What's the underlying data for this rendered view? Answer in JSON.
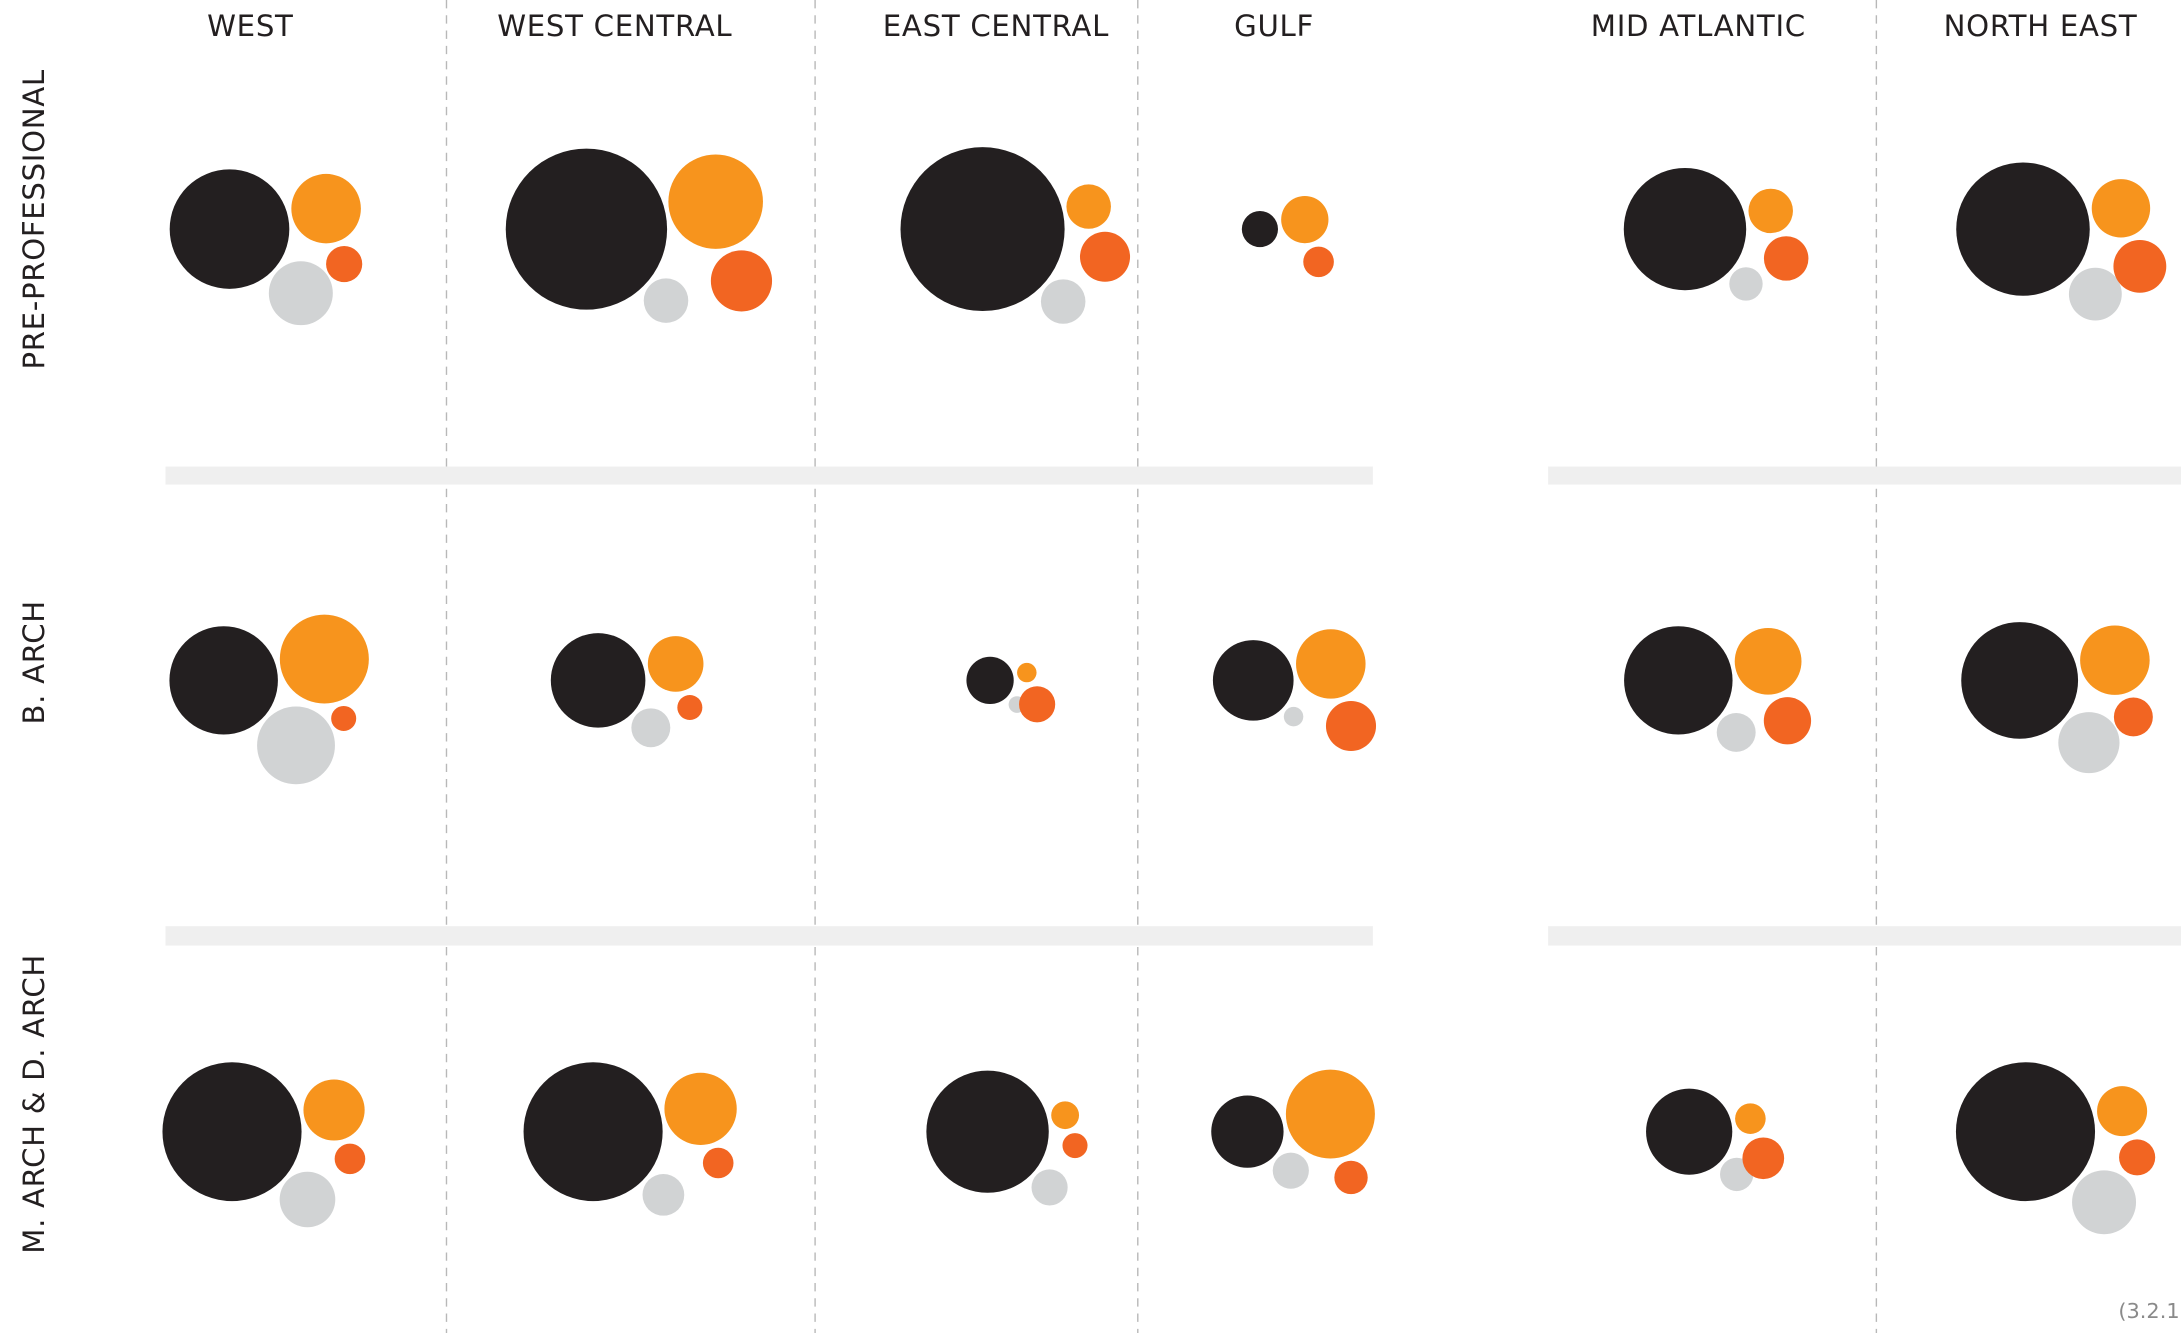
{
  "chart_data": {
    "type": "bubble-grid",
    "columns": [
      "WEST",
      "WEST CENTRAL",
      "EAST CENTRAL",
      "GULF",
      "MID ATLANTIC",
      "NORTH EAST"
    ],
    "colors": [
      "#231f20",
      "#f7941d",
      "#d1d3d4",
      "#f26522"
    ],
    "rows": [
      {
        "label": "PRE-PROFESSIONAL",
        "values": [
          [
            43,
            25,
            23,
            13
          ],
          [
            58,
            34,
            16,
            22
          ],
          [
            59,
            16,
            16,
            18
          ],
          [
            13,
            17,
            0,
            11
          ],
          [
            44,
            16,
            12,
            16
          ],
          [
            48,
            21,
            19,
            19
          ]
        ]
      },
      {
        "label": "B. ARCH",
        "values": [
          [
            39,
            32,
            28,
            9
          ],
          [
            34,
            20,
            14,
            9
          ],
          [
            17,
            7,
            6,
            13
          ],
          [
            29,
            25,
            7,
            18
          ],
          [
            39,
            24,
            14,
            17
          ],
          [
            42,
            25,
            22,
            14
          ]
        ]
      },
      {
        "label": "M. ARCH &  D. ARCH",
        "values": [
          [
            50,
            22,
            20,
            11
          ],
          [
            50,
            26,
            15,
            11
          ],
          [
            44,
            10,
            13,
            9
          ],
          [
            26,
            32,
            13,
            12
          ],
          [
            31,
            11,
            12,
            15
          ],
          [
            50,
            18,
            23,
            13
          ]
        ]
      }
    ],
    "note": "(3.2.1"
  }
}
